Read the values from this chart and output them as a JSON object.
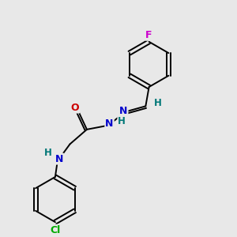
{
  "bg_color": "#e8e8e8",
  "bond_color": "#000000",
  "atom_colors": {
    "F": "#cc00cc",
    "N": "#0000cc",
    "O": "#cc0000",
    "Cl": "#00aa00",
    "C": "#000000",
    "H": "#007777"
  },
  "figsize": [
    3.0,
    3.0
  ],
  "dpi": 100,
  "lw": 1.4
}
